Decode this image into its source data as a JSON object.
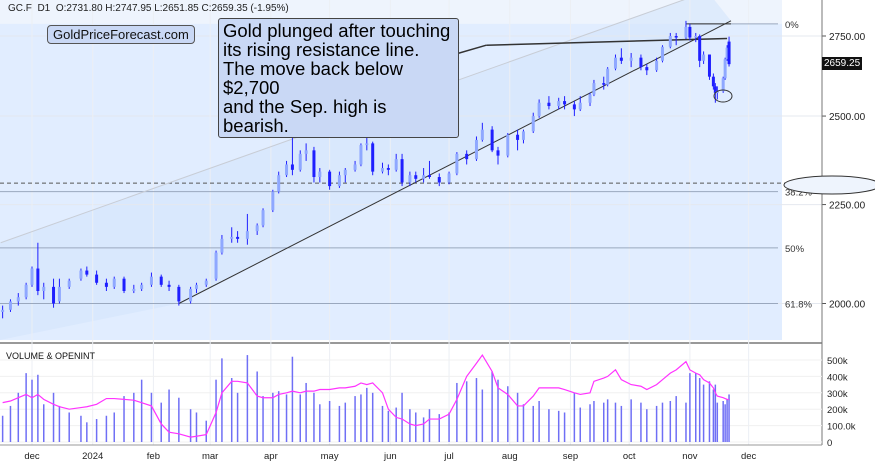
{
  "header": {
    "symbol": "GC.F",
    "timeframe": "D1",
    "ohlc_text": "O:2731.80 H:2747.95 L:2651.85 C:2659.35 (-1.95%)"
  },
  "logo": "GoldPriceForecast.com",
  "callout": [
    "Gold plunged after touching",
    "its rising resistance line.",
    "The move back below $2,700",
    "and the Sep. high is bearish."
  ],
  "last_price": "2659.25",
  "colors": {
    "candles": "#1f1fff",
    "volume": "#6f6ff5",
    "open_interest": "#ff33ff",
    "fib_fill": "#dceaff"
  },
  "chart_data": {
    "type": "candlestick",
    "price_scale": "log",
    "ylim": [
      1900,
      2880
    ],
    "yticks": [
      "2000.00",
      "2250.00",
      "2500.00",
      "2750.00"
    ],
    "xticks": [
      {
        "label": "dec",
        "date": "2023-12-01"
      },
      {
        "label": "2024",
        "date": "2024-01-01"
      },
      {
        "label": "feb",
        "date": "2024-02-01"
      },
      {
        "label": "mar",
        "date": "2024-03-01"
      },
      {
        "label": "apr",
        "date": "2024-04-01"
      },
      {
        "label": "may",
        "date": "2024-05-01"
      },
      {
        "label": "jun",
        "date": "2024-06-01"
      },
      {
        "label": "jul",
        "date": "2024-07-01"
      },
      {
        "label": "aug",
        "date": "2024-08-01"
      },
      {
        "label": "sep",
        "date": "2024-09-01"
      },
      {
        "label": "oct",
        "date": "2024-10-01"
      },
      {
        "label": "nov",
        "date": "2024-11-01"
      },
      {
        "label": "dec",
        "date": "2024-12-01"
      }
    ],
    "fib_levels": [
      {
        "label": "0%",
        "price": 2790
      },
      {
        "label": "38.2%",
        "price": 2285
      },
      {
        "label": "50%",
        "price": 2137
      },
      {
        "label": "61.8%",
        "price": 2000
      }
    ],
    "dashed_level": 2308,
    "trendlines": [
      {
        "name": "rising-support",
        "from": [
          "2024-02-14",
          2000
        ],
        "to": [
          "2024-11-22",
          2800
        ]
      },
      {
        "name": "upper-channel",
        "from": [
          "2023-11-15",
          2150
        ],
        "to": [
          "2024-11-10",
          2900
        ]
      },
      {
        "name": "resistance",
        "from": [
          "2024-07-20",
          2720
        ],
        "to": [
          "2024-11-20",
          2742
        ]
      },
      {
        "name": "top-level",
        "from": [
          "2024-10-30",
          2790
        ],
        "to": [
          "2024-11-22",
          2790
        ]
      }
    ],
    "volume_panel": {
      "title": "VOLUME & OPENINT",
      "ylim": [
        0,
        560
      ],
      "yticks": [
        "0",
        "100.0k",
        "200k",
        "300k",
        "400k",
        "500k"
      ]
    },
    "bars_columns": [
      "date",
      "open",
      "high",
      "low",
      "close",
      "volume_k",
      "open_interest_k"
    ],
    "bars": [
      [
        "2023-11-16",
        1980,
        1995,
        1965,
        1985,
        160,
        240
      ],
      [
        "2023-11-20",
        1985,
        2010,
        1980,
        2005,
        220,
        250
      ],
      [
        "2023-11-24",
        2005,
        2025,
        1995,
        2015,
        300,
        270
      ],
      [
        "2023-11-28",
        2015,
        2050,
        2010,
        2045,
        420,
        290
      ],
      [
        "2023-12-01",
        2045,
        2090,
        2040,
        2085,
        380,
        270
      ],
      [
        "2023-12-04",
        2085,
        2150,
        2020,
        2030,
        410,
        290
      ],
      [
        "2023-12-07",
        2030,
        2050,
        2010,
        2040,
        230,
        260
      ],
      [
        "2023-12-12",
        2040,
        2060,
        1990,
        2000,
        300,
        230
      ],
      [
        "2023-12-15",
        2005,
        2060,
        2000,
        2040,
        220,
        215
      ],
      [
        "2023-12-20",
        2040,
        2060,
        2035,
        2055,
        180,
        200
      ],
      [
        "2023-12-26",
        2060,
        2085,
        2055,
        2080,
        160,
        210
      ],
      [
        "2023-12-29",
        2080,
        2090,
        2065,
        2070,
        120,
        215
      ],
      [
        "2024-01-03",
        2070,
        2080,
        2045,
        2050,
        140,
        230
      ],
      [
        "2024-01-08",
        2050,
        2060,
        2030,
        2040,
        160,
        265
      ],
      [
        "2024-01-12",
        2040,
        2065,
        2035,
        2060,
        180,
        265
      ],
      [
        "2024-01-17",
        2060,
        2065,
        2025,
        2030,
        280,
        260
      ],
      [
        "2024-01-22",
        2030,
        2045,
        2025,
        2035,
        300,
        255
      ],
      [
        "2024-01-26",
        2035,
        2050,
        2030,
        2045,
        380,
        240
      ],
      [
        "2024-01-31",
        2045,
        2075,
        2040,
        2065,
        300,
        220
      ],
      [
        "2024-02-05",
        2065,
        2070,
        2040,
        2045,
        240,
        110
      ],
      [
        "2024-02-09",
        2045,
        2055,
        2030,
        2040,
        320,
        60
      ],
      [
        "2024-02-14",
        2040,
        2045,
        1995,
        2005,
        270,
        50
      ],
      [
        "2024-02-20",
        2005,
        2040,
        2000,
        2035,
        200,
        30
      ],
      [
        "2024-02-23",
        2035,
        2050,
        2025,
        2045,
        180,
        35
      ],
      [
        "2024-02-28",
        2045,
        2060,
        2040,
        2055,
        130,
        45
      ],
      [
        "2024-03-04",
        2060,
        2130,
        2055,
        2125,
        380,
        180
      ],
      [
        "2024-03-07",
        2125,
        2170,
        2120,
        2160,
        510,
        300
      ],
      [
        "2024-03-12",
        2160,
        2190,
        2150,
        2165,
        390,
        370
      ],
      [
        "2024-03-15",
        2165,
        2180,
        2150,
        2160,
        300,
        370
      ],
      [
        "2024-03-20",
        2160,
        2225,
        2145,
        2180,
        530,
        360
      ],
      [
        "2024-03-25",
        2180,
        2200,
        2170,
        2195,
        430,
        280
      ],
      [
        "2024-03-28",
        2195,
        2240,
        2190,
        2235,
        280,
        270
      ],
      [
        "2024-04-02",
        2235,
        2290,
        2230,
        2285,
        300,
        270
      ],
      [
        "2024-04-05",
        2285,
        2340,
        2280,
        2330,
        310,
        290
      ],
      [
        "2024-04-09",
        2330,
        2370,
        2325,
        2360,
        290,
        300
      ],
      [
        "2024-04-12",
        2360,
        2450,
        2330,
        2345,
        520,
        310
      ],
      [
        "2024-04-16",
        2345,
        2400,
        2340,
        2390,
        290,
        300
      ],
      [
        "2024-04-19",
        2390,
        2420,
        2370,
        2400,
        360,
        310
      ],
      [
        "2024-04-23",
        2400,
        2410,
        2310,
        2325,
        300,
        310
      ],
      [
        "2024-04-26",
        2325,
        2350,
        2310,
        2340,
        230,
        320
      ],
      [
        "2024-05-01",
        2340,
        2345,
        2290,
        2300,
        250,
        320
      ],
      [
        "2024-05-06",
        2300,
        2340,
        2295,
        2330,
        220,
        330
      ],
      [
        "2024-05-09",
        2330,
        2350,
        2310,
        2345,
        240,
        330
      ],
      [
        "2024-05-14",
        2345,
        2370,
        2340,
        2360,
        280,
        340
      ],
      [
        "2024-05-17",
        2360,
        2420,
        2355,
        2415,
        290,
        360
      ],
      [
        "2024-05-20",
        2415,
        2450,
        2400,
        2420,
        330,
        350
      ],
      [
        "2024-05-23",
        2420,
        2425,
        2330,
        2340,
        300,
        360
      ],
      [
        "2024-05-28",
        2340,
        2365,
        2335,
        2350,
        220,
        300
      ],
      [
        "2024-05-31",
        2350,
        2360,
        2330,
        2345,
        190,
        200
      ],
      [
        "2024-06-04",
        2345,
        2390,
        2340,
        2375,
        210,
        150
      ],
      [
        "2024-06-07",
        2375,
        2390,
        2300,
        2310,
        300,
        140
      ],
      [
        "2024-06-11",
        2310,
        2340,
        2300,
        2330,
        200,
        110
      ],
      [
        "2024-06-14",
        2330,
        2340,
        2310,
        2320,
        180,
        100
      ],
      [
        "2024-06-18",
        2320,
        2350,
        2310,
        2330,
        150,
        110
      ],
      [
        "2024-06-21",
        2330,
        2370,
        2320,
        2325,
        200,
        140
      ],
      [
        "2024-06-26",
        2325,
        2335,
        2300,
        2310,
        170,
        140
      ],
      [
        "2024-07-01",
        2310,
        2340,
        2305,
        2335,
        180,
        170
      ],
      [
        "2024-07-05",
        2335,
        2395,
        2330,
        2390,
        360,
        260
      ],
      [
        "2024-07-10",
        2390,
        2400,
        2360,
        2375,
        370,
        400
      ],
      [
        "2024-07-15",
        2375,
        2440,
        2370,
        2430,
        390,
        480
      ],
      [
        "2024-07-18",
        2430,
        2480,
        2425,
        2460,
        320,
        530
      ],
      [
        "2024-07-23",
        2460,
        2470,
        2395,
        2400,
        430,
        430
      ],
      [
        "2024-07-26",
        2400,
        2410,
        2360,
        2385,
        380,
        330
      ],
      [
        "2024-07-31",
        2385,
        2450,
        2380,
        2445,
        340,
        290
      ],
      [
        "2024-08-05",
        2445,
        2460,
        2400,
        2430,
        300,
        220
      ],
      [
        "2024-08-08",
        2430,
        2460,
        2420,
        2455,
        230,
        220
      ],
      [
        "2024-08-13",
        2455,
        2510,
        2450,
        2500,
        220,
        280
      ],
      [
        "2024-08-16",
        2500,
        2550,
        2495,
        2540,
        250,
        330
      ],
      [
        "2024-08-21",
        2540,
        2560,
        2520,
        2530,
        200,
        330
      ],
      [
        "2024-08-26",
        2530,
        2555,
        2520,
        2545,
        190,
        330
      ],
      [
        "2024-08-29",
        2545,
        2560,
        2520,
        2535,
        180,
        320
      ],
      [
        "2024-09-03",
        2535,
        2545,
        2500,
        2520,
        300,
        300
      ],
      [
        "2024-09-06",
        2520,
        2560,
        2515,
        2540,
        210,
        290
      ],
      [
        "2024-09-11",
        2540,
        2570,
        2530,
        2565,
        230,
        300
      ],
      [
        "2024-09-13",
        2565,
        2610,
        2560,
        2600,
        250,
        370
      ],
      [
        "2024-09-18",
        2600,
        2620,
        2580,
        2595,
        240,
        390
      ],
      [
        "2024-09-20",
        2595,
        2650,
        2590,
        2645,
        260,
        400
      ],
      [
        "2024-09-24",
        2645,
        2690,
        2640,
        2680,
        240,
        440
      ],
      [
        "2024-09-27",
        2680,
        2710,
        2660,
        2670,
        220,
        380
      ],
      [
        "2024-10-02",
        2670,
        2695,
        2650,
        2680,
        260,
        350
      ],
      [
        "2024-10-07",
        2680,
        2690,
        2640,
        2650,
        240,
        340
      ],
      [
        "2024-10-10",
        2650,
        2660,
        2625,
        2640,
        200,
        320
      ],
      [
        "2024-10-15",
        2640,
        2680,
        2635,
        2670,
        220,
        350
      ],
      [
        "2024-10-18",
        2670,
        2720,
        2665,
        2715,
        240,
        380
      ],
      [
        "2024-10-22",
        2715,
        2760,
        2710,
        2750,
        250,
        420
      ],
      [
        "2024-10-25",
        2750,
        2760,
        2720,
        2745,
        280,
        440
      ],
      [
        "2024-10-30",
        2745,
        2800,
        2740,
        2780,
        240,
        490
      ],
      [
        "2024-11-01",
        2780,
        2790,
        2735,
        2745,
        420,
        440
      ],
      [
        "2024-11-04",
        2745,
        2760,
        2730,
        2750,
        420,
        420
      ],
      [
        "2024-11-06",
        2750,
        2755,
        2650,
        2670,
        390,
        410
      ],
      [
        "2024-11-08",
        2670,
        2700,
        2660,
        2690,
        350,
        380
      ],
      [
        "2024-11-11",
        2690,
        2690,
        2610,
        2620,
        370,
        360
      ],
      [
        "2024-11-13",
        2620,
        2630,
        2580,
        2590,
        320,
        330
      ],
      [
        "2024-11-14",
        2590,
        2600,
        2540,
        2570,
        350,
        300
      ],
      [
        "2024-11-15",
        2570,
        2590,
        2550,
        2575,
        240,
        280
      ],
      [
        "2024-11-18",
        2575,
        2620,
        2570,
        2615,
        250,
        270
      ],
      [
        "2024-11-19",
        2615,
        2680,
        2610,
        2675,
        230,
        265
      ],
      [
        "2024-11-20",
        2675,
        2720,
        2670,
        2712,
        260,
        260
      ],
      [
        "2024-11-21",
        2731.8,
        2747.95,
        2651.85,
        2659.35,
        290,
        258
      ]
    ]
  }
}
